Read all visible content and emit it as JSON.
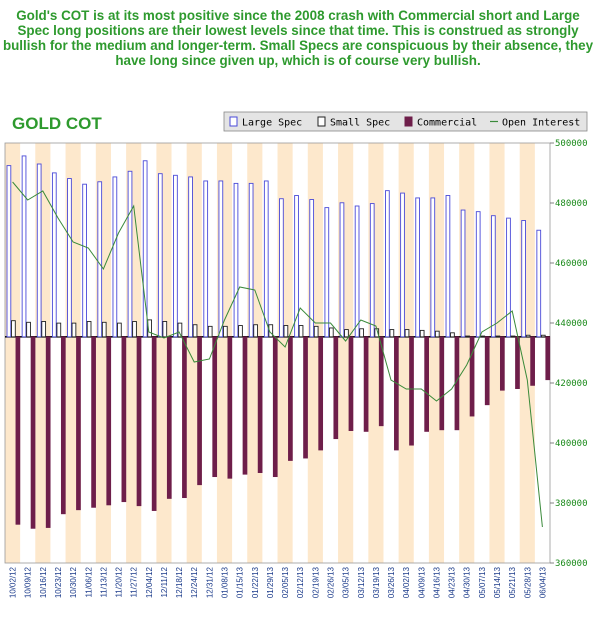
{
  "caption": "Gold's COT is at its most positive since the 2008 crash with Commercial short and Large Spec long positions are their lowest levels since that time. This is construed as strongly bullish for the medium and longer-term. Small Specs are conspicuous by their absence, they have long since given up, which is of course very bullish.",
  "colors": {
    "large_spec": "#4a4ad8",
    "small_spec": "#222222",
    "commercial": "#6e1e4a",
    "open_interest": "#3a8a3a",
    "band": "#fde8cc",
    "axis_text": "#1a8a1a"
  },
  "chart_data": {
    "type": "bar",
    "title": "GOLD COT",
    "legend_position": "top-right",
    "categories": [
      "10/02/12",
      "10/09/12",
      "10/16/12",
      "10/23/12",
      "10/30/12",
      "11/06/12",
      "11/13/12",
      "11/20/12",
      "11/27/12",
      "12/04/12",
      "12/11/12",
      "12/18/12",
      "12/24/12",
      "12/31/12",
      "01/08/13",
      "01/15/13",
      "01/22/13",
      "01/29/13",
      "02/05/13",
      "02/12/13",
      "02/19/13",
      "02/26/13",
      "03/05/13",
      "03/12/13",
      "03/19/13",
      "03/26/13",
      "04/02/13",
      "04/09/13",
      "04/16/13",
      "04/23/13",
      "04/30/13",
      "05/07/13",
      "05/14/13",
      "05/21/13",
      "05/28/13",
      "06/04/13"
    ],
    "y_left_range": [
      -280000,
      240000
    ],
    "series": [
      {
        "name": "Large Spec",
        "type": "bar",
        "values": [
          212000,
          224000,
          214000,
          203000,
          196000,
          189000,
          192000,
          198000,
          205000,
          218000,
          202000,
          200000,
          198000,
          193000,
          193000,
          190000,
          190000,
          193000,
          171000,
          175000,
          170000,
          160000,
          166000,
          162000,
          165000,
          181000,
          178000,
          172000,
          172000,
          175000,
          157000,
          155000,
          150000,
          147000,
          144000,
          132000
        ]
      },
      {
        "name": "Small Spec",
        "type": "bar",
        "values": [
          20000,
          18000,
          19000,
          17000,
          17000,
          19000,
          18000,
          17000,
          19000,
          21000,
          19000,
          17000,
          15000,
          13000,
          13000,
          14000,
          15000,
          15000,
          14000,
          14000,
          13000,
          11000,
          9000,
          10000,
          10000,
          9000,
          9000,
          8000,
          7000,
          5000,
          1000,
          1000,
          1000,
          1000,
          2000,
          2000
        ]
      },
      {
        "name": "Commercial",
        "type": "bar",
        "values": [
          -232000,
          -237000,
          -236000,
          -219000,
          -214000,
          -211000,
          -208000,
          -204000,
          -209000,
          -215000,
          -200000,
          -199000,
          -183000,
          -173000,
          -175000,
          -170000,
          -168000,
          -173000,
          -153000,
          -150000,
          -140000,
          -126000,
          -116000,
          -117000,
          -110000,
          -140000,
          -134000,
          -117000,
          -115000,
          -115000,
          -98000,
          -84000,
          -66000,
          -64000,
          -60000,
          -53000
        ]
      },
      {
        "name": "Open Interest",
        "type": "line",
        "axis": "right",
        "values": [
          487000,
          481000,
          484000,
          475000,
          467000,
          465000,
          458000,
          470000,
          479000,
          437000,
          435000,
          437000,
          427000,
          428000,
          441000,
          452000,
          451000,
          437000,
          432000,
          445000,
          440000,
          440000,
          434000,
          441000,
          439000,
          421000,
          418000,
          418000,
          414000,
          418000,
          426000,
          437000,
          440000,
          444000,
          421000,
          372000
        ]
      }
    ],
    "y_right_range": [
      360000,
      500000
    ],
    "y_right_ticks": [
      "500000",
      "480000",
      "460000",
      "440000",
      "420000",
      "400000",
      "380000",
      "360000"
    ],
    "grid": false
  }
}
